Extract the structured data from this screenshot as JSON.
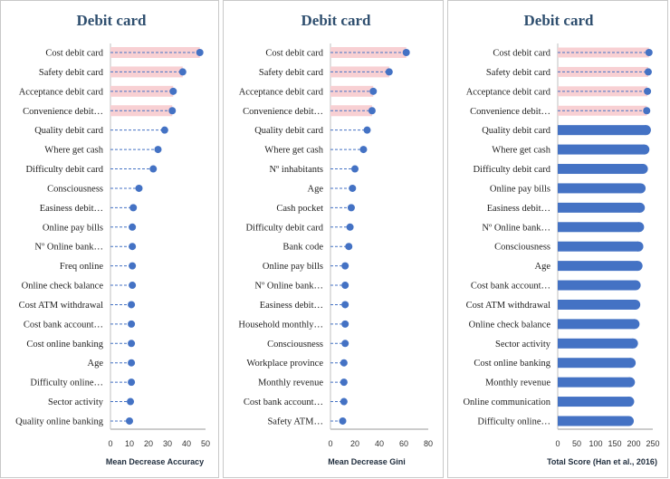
{
  "colors": {
    "marker": "#4472c4",
    "highlight": "#f8d0d3",
    "bar": "#4472c4",
    "axis": "#999999",
    "title": "#2f4f6f"
  },
  "chart_data": [
    {
      "type": "lollipop",
      "title": "Debit card",
      "xlabel": "Mean Decrease Accuracy",
      "xlim": [
        0,
        50
      ],
      "xticks": [
        0,
        10,
        20,
        30,
        40,
        50
      ],
      "highlighted_top": 4,
      "categories": [
        "Cost debit card",
        "Safety debit card",
        "Acceptance debit card",
        "Convenience debit…",
        "Quality debit card",
        "Where get cash",
        "Difficulty debit card",
        "Consciousness",
        "Easiness debit…",
        "Online pay bills",
        "Nº Online bank…",
        "Freq online",
        "Online check balance",
        "Cost ATM withdrawal",
        "Cost bank account…",
        "Cost online banking",
        "Age",
        "Difficulty online…",
        "Sector activity",
        "Quality online banking"
      ],
      "values": [
        47,
        38,
        33,
        32.5,
        28.5,
        25,
        22.5,
        15,
        12,
        11.5,
        11.5,
        11.5,
        11.5,
        11,
        11,
        11,
        11,
        11,
        10.5,
        10
      ]
    },
    {
      "type": "lollipop",
      "title": "Debit card",
      "xlabel": "Mean Decrease Gini",
      "xlim": [
        0,
        80
      ],
      "xticks": [
        0,
        20,
        40,
        60,
        80
      ],
      "highlighted_top": 4,
      "categories": [
        "Cost debit card",
        "Safety debit card",
        "Acceptance debit card",
        "Convenience debit…",
        "Quality debit card",
        "Where get cash",
        "Nº inhabitants",
        "Age",
        "Cash pocket",
        "Difficulty debit card",
        "Bank code",
        "Online pay bills",
        "Nº Online bank…",
        "Easiness debit…",
        "Household monthly…",
        "Consciousness",
        "Workplace province",
        "Monthly revenue",
        "Cost bank account…",
        "Safety ATM…"
      ],
      "values": [
        62,
        48,
        35,
        34,
        30,
        27,
        20,
        18,
        17,
        16,
        15,
        12,
        12,
        12,
        12,
        12,
        11,
        11,
        11,
        10
      ]
    },
    {
      "type": "bar",
      "title": "Debit card",
      "xlabel": "Total Score (Han et al., 2016)",
      "xlim": [
        0,
        250
      ],
      "xticks": [
        0,
        50,
        100,
        150,
        200,
        250
      ],
      "highlighted_top": 4,
      "categories": [
        "Cost debit card",
        "Safety debit card",
        "Acceptance debit card",
        "Convenience debit…",
        "Quality debit card",
        "Where get cash",
        "Difficulty debit card",
        "Online pay bills",
        "Easiness debit…",
        "Nº Online bank…",
        "Consciousness",
        "Age",
        "Cost bank account…",
        "Cost ATM withdrawal",
        "Online check balance",
        "Sector activity",
        "Cost online banking",
        "Monthly revenue",
        "Online communication",
        "Difficulty online…"
      ],
      "values": [
        240,
        238,
        236,
        234,
        232,
        228,
        224,
        218,
        216,
        214,
        212,
        210,
        205,
        204,
        202,
        198,
        192,
        190,
        188,
        187
      ]
    }
  ]
}
